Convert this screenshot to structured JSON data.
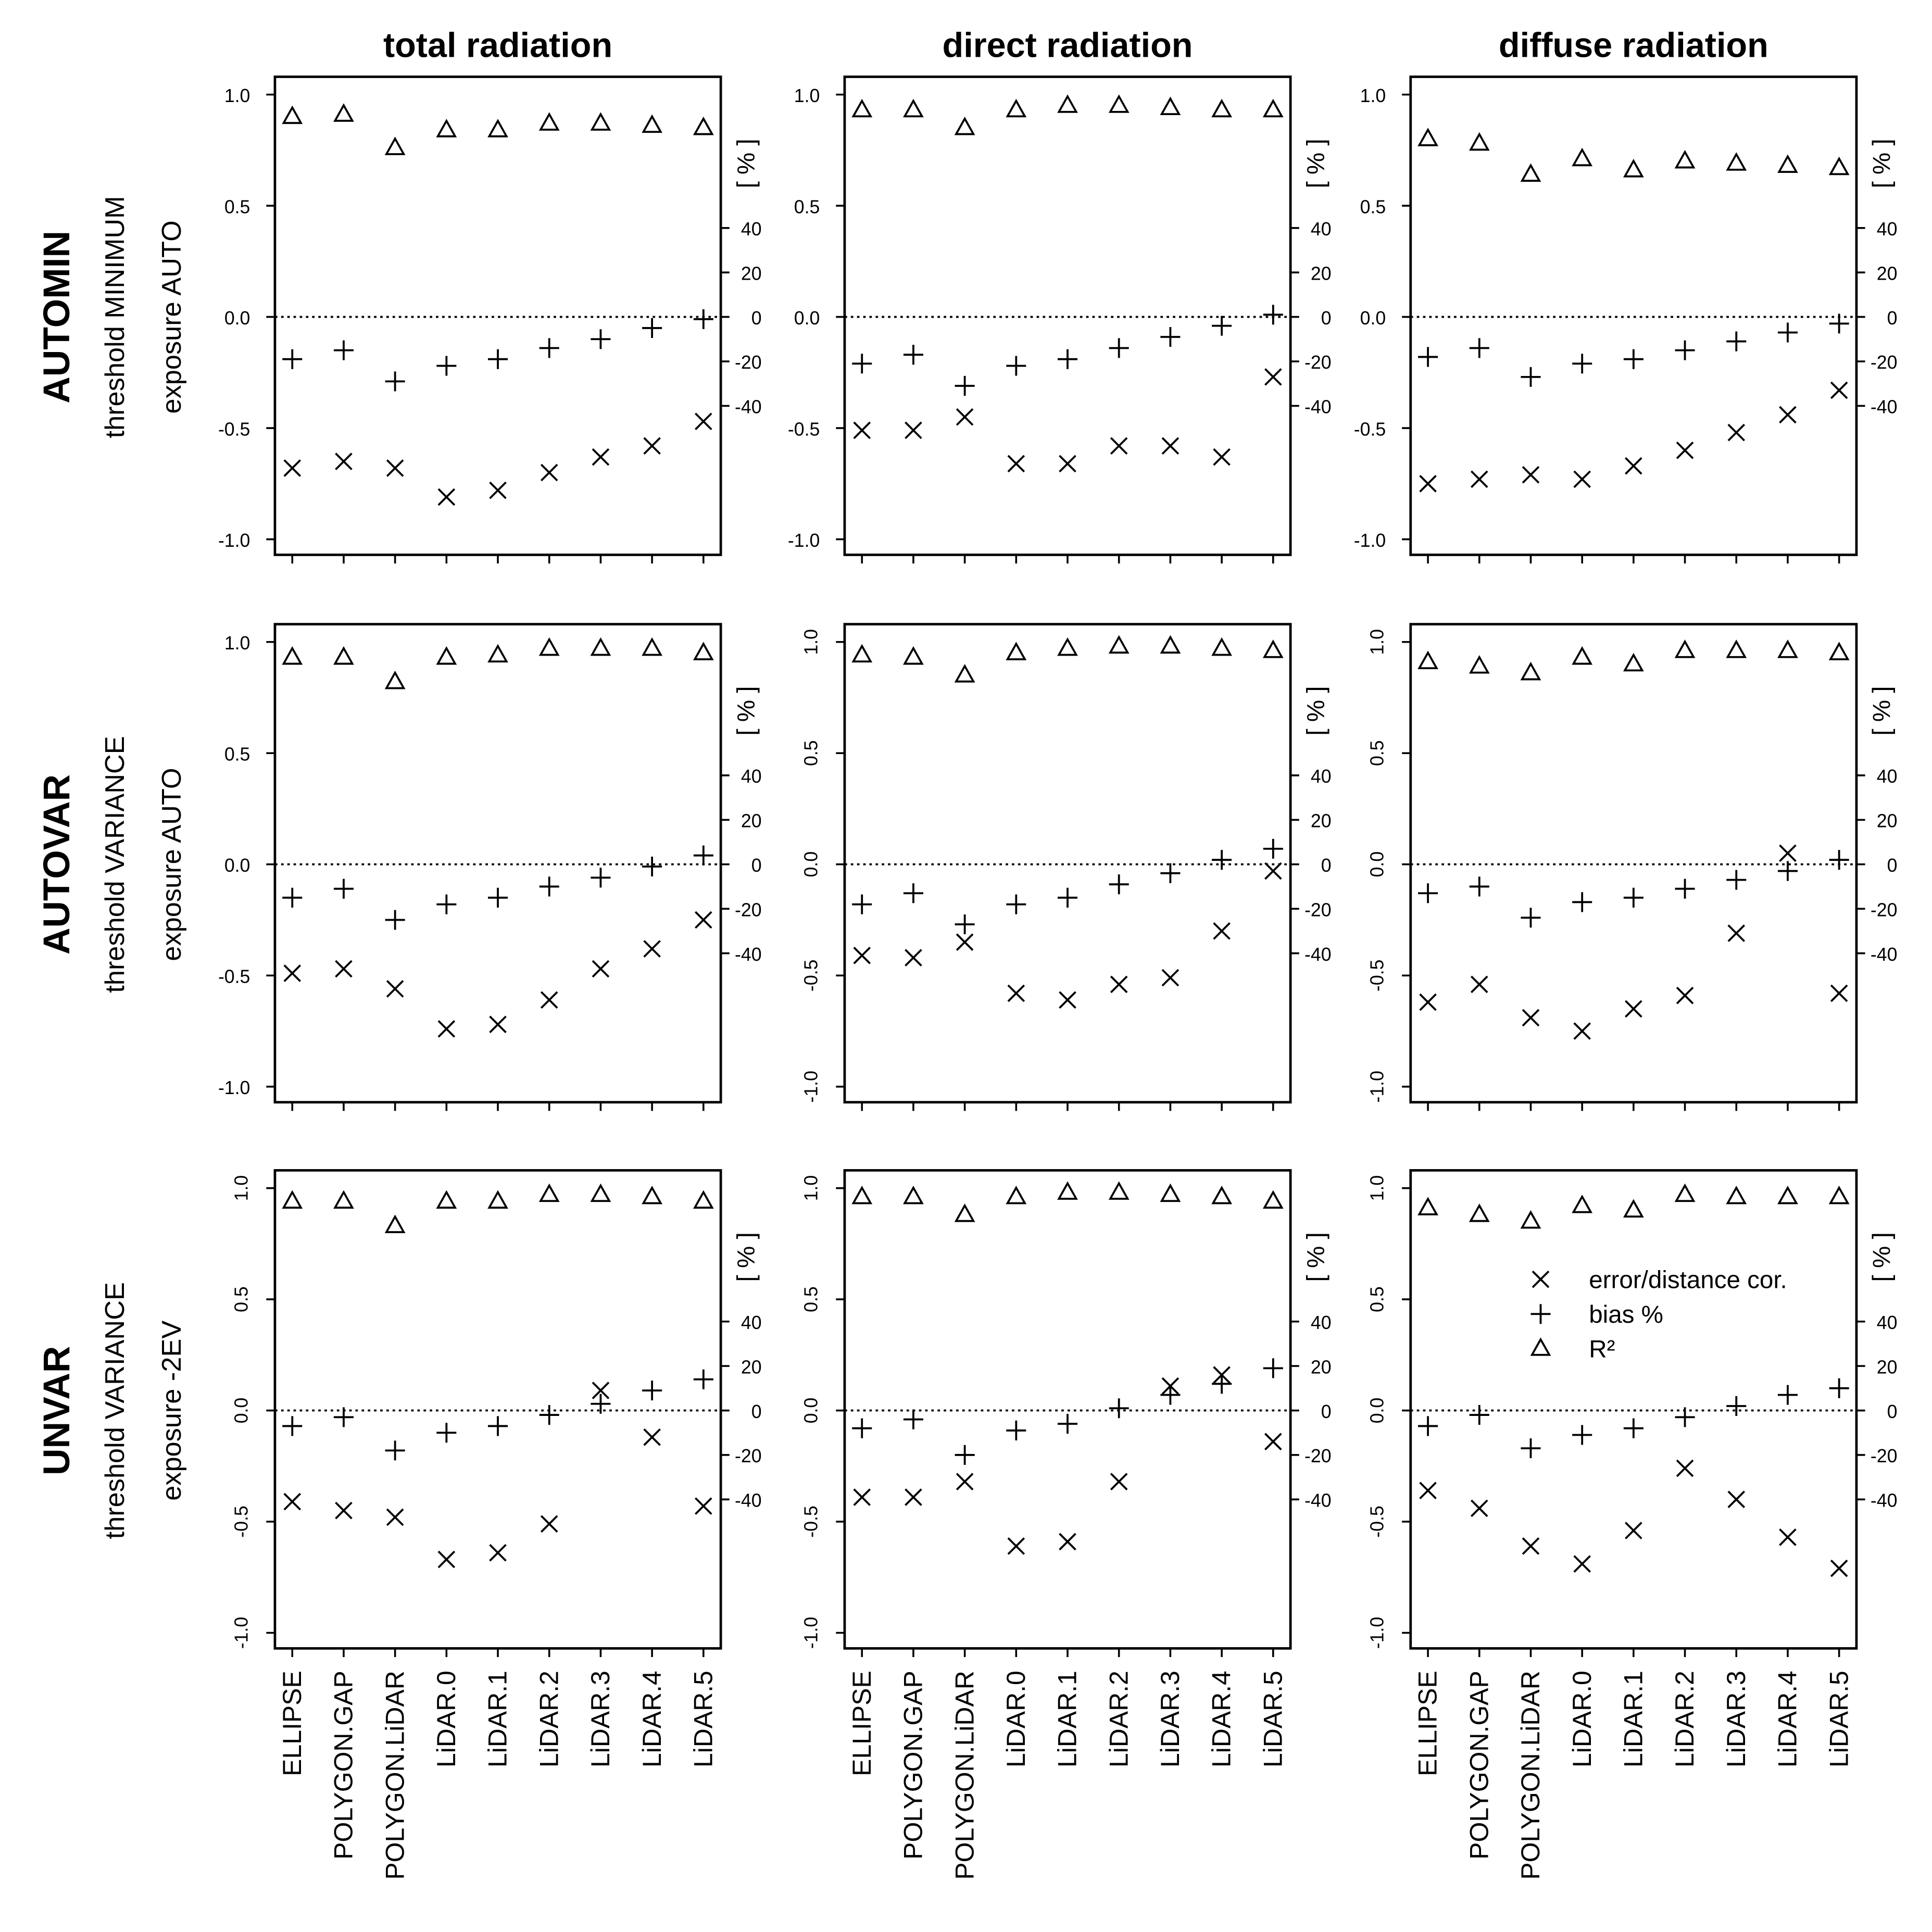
{
  "column_titles": [
    "total radiation",
    "direct radiation",
    "diffuse radiation"
  ],
  "row_labels": [
    {
      "title": "AUTOMIN",
      "threshold": "threshold MINIMUM",
      "exposure": "exposure AUTO"
    },
    {
      "title": "AUTOVAR",
      "threshold": "threshold VARIANCE",
      "exposure": "exposure AUTO"
    },
    {
      "title": "UNVAR",
      "threshold": "threshold VARIANCE",
      "exposure": "exposure -2EV"
    }
  ],
  "chart_data": [
    {
      "type": "scatter",
      "categories": [
        null,
        null,
        null,
        null,
        null,
        null,
        null,
        null,
        null
      ],
      "ylim": [
        -1.07,
        1.08
      ],
      "yticks": [
        {
          "value": -1,
          "label": "-1.0"
        },
        {
          "value": -0.5,
          "label": "-0.5"
        },
        {
          "value": 0,
          "label": "0.0"
        },
        {
          "value": 0.5,
          "label": "0.5"
        },
        {
          "value": 1,
          "label": "1.0"
        }
      ],
      "y2lim": [
        -107,
        108
      ],
      "y2ticks": [
        -40,
        -20,
        0,
        20,
        40
      ],
      "y2label": "[ % ]",
      "hline": 0,
      "series": [
        {
          "marker": "x",
          "color": "#000000",
          "values": [
            -0.68,
            -0.65,
            -0.68,
            -0.81,
            -0.78,
            -0.7,
            -0.63,
            -0.58,
            -0.47
          ]
        },
        {
          "marker": "+",
          "color": "#000000",
          "axis": "y2",
          "values": [
            -19,
            -15,
            -29,
            -22,
            -19,
            -14,
            -10,
            -5,
            -1
          ]
        },
        {
          "marker": "triangle",
          "color": "#000000",
          "values": [
            0.9,
            0.91,
            0.76,
            0.84,
            0.84,
            0.87,
            0.87,
            0.86,
            0.85
          ]
        }
      ]
    },
    {
      "type": "scatter",
      "categories": [
        null,
        null,
        null,
        null,
        null,
        null,
        null,
        null,
        null
      ],
      "ylim": [
        -1.07,
        1.08
      ],
      "yticks": [
        {
          "value": -1,
          "label": "-1.0"
        },
        {
          "value": -0.5,
          "label": "-0.5"
        },
        {
          "value": 0,
          "label": "0.0"
        },
        {
          "value": 0.5,
          "label": "0.5"
        },
        {
          "value": 1,
          "label": "1.0"
        }
      ],
      "y2lim": [
        -107,
        108
      ],
      "y2ticks": [
        -40,
        -20,
        0,
        20,
        40
      ],
      "y2label": "[ % ]",
      "hline": 0,
      "series": [
        {
          "marker": "x",
          "color": "#000000",
          "values": [
            -0.51,
            -0.51,
            -0.45,
            -0.66,
            -0.66,
            -0.58,
            -0.58,
            -0.63,
            -0.27
          ]
        },
        {
          "marker": "+",
          "color": "#000000",
          "axis": "y2",
          "values": [
            -21,
            -17,
            -31,
            -22,
            -19,
            -14,
            -9,
            -4,
            1
          ]
        },
        {
          "marker": "triangle",
          "color": "#000000",
          "values": [
            0.93,
            0.93,
            0.85,
            0.93,
            0.95,
            0.95,
            0.94,
            0.93,
            0.93
          ]
        }
      ]
    },
    {
      "type": "scatter",
      "categories": [
        null,
        null,
        null,
        null,
        null,
        null,
        null,
        null,
        null
      ],
      "ylim": [
        -1.07,
        1.08
      ],
      "yticks": [
        {
          "value": -1,
          "label": "-1.0"
        },
        {
          "value": -0.5,
          "label": "-0.5"
        },
        {
          "value": 0,
          "label": "0.0"
        },
        {
          "value": 0.5,
          "label": "0.5"
        },
        {
          "value": 1,
          "label": "1.0"
        }
      ],
      "y2lim": [
        -107,
        108
      ],
      "y2ticks": [
        -40,
        -20,
        0,
        20,
        40
      ],
      "y2label": "[ % ]",
      "hline": 0,
      "series": [
        {
          "marker": "x",
          "color": "#000000",
          "values": [
            -0.75,
            -0.73,
            -0.71,
            -0.73,
            -0.67,
            -0.6,
            -0.52,
            -0.44,
            -0.33
          ]
        },
        {
          "marker": "+",
          "color": "#000000",
          "axis": "y2",
          "values": [
            -18,
            -14,
            -27,
            -21,
            -19,
            -15,
            -11,
            -7,
            -3
          ]
        },
        {
          "marker": "triangle",
          "color": "#000000",
          "values": [
            0.8,
            0.78,
            0.64,
            0.71,
            0.66,
            0.7,
            0.69,
            0.68,
            0.67
          ]
        }
      ]
    },
    {
      "type": "scatter",
      "categories": [
        null,
        null,
        null,
        null,
        null,
        null,
        null,
        null,
        null
      ],
      "ylim": [
        -1.07,
        1.08
      ],
      "yticks": [
        {
          "value": -1,
          "label": "-1.0"
        },
        {
          "value": -0.5,
          "label": "-0.5"
        },
        {
          "value": 0,
          "label": "0.0"
        },
        {
          "value": 0.5,
          "label": "0.5"
        },
        {
          "value": 1,
          "label": "1.0"
        }
      ],
      "y2lim": [
        -107,
        108
      ],
      "y2ticks": [
        -40,
        -20,
        0,
        20,
        40
      ],
      "y2label": "[ % ]",
      "hline": 0,
      "series": [
        {
          "marker": "x",
          "color": "#000000",
          "values": [
            -0.49,
            -0.47,
            -0.56,
            -0.74,
            -0.72,
            -0.61,
            -0.47,
            -0.38,
            -0.25
          ]
        },
        {
          "marker": "+",
          "color": "#000000",
          "axis": "y2",
          "values": [
            -15,
            -11,
            -25,
            -18,
            -15,
            -10,
            -6,
            -1,
            4
          ]
        },
        {
          "marker": "triangle",
          "color": "#000000",
          "values": [
            0.93,
            0.93,
            0.82,
            0.93,
            0.94,
            0.97,
            0.97,
            0.97,
            0.95
          ]
        }
      ]
    },
    {
      "type": "scatter",
      "categories": [
        null,
        null,
        null,
        null,
        null,
        null,
        null,
        null,
        null
      ],
      "ylim": [
        -1.07,
        1.08
      ],
      "yticks": [
        {
          "value": -1,
          "label": "-1.0"
        },
        {
          "value": -0.5,
          "label": "-0.5"
        },
        {
          "value": 0,
          "label": "0.0"
        },
        {
          "value": 0.5,
          "label": "0.5"
        },
        {
          "value": 1,
          "label": "1.0"
        }
      ],
      "y2lim": [
        -107,
        108
      ],
      "y2ticks": [
        -40,
        -20,
        0,
        20,
        40
      ],
      "y2label": "[ % ]",
      "hline": 0,
      "series": [
        {
          "marker": "x",
          "color": "#000000",
          "values": [
            -0.41,
            -0.42,
            -0.35,
            -0.58,
            -0.61,
            -0.54,
            -0.51,
            -0.3,
            -0.03
          ]
        },
        {
          "marker": "+",
          "color": "#000000",
          "axis": "y2",
          "values": [
            -18,
            -13,
            -27,
            -18,
            -15,
            -9,
            -4,
            2,
            7
          ]
        },
        {
          "marker": "triangle",
          "color": "#000000",
          "values": [
            0.94,
            0.93,
            0.85,
            0.95,
            0.97,
            0.98,
            0.98,
            0.97,
            0.96
          ]
        }
      ]
    },
    {
      "type": "scatter",
      "categories": [
        null,
        null,
        null,
        null,
        null,
        null,
        null,
        null,
        null
      ],
      "ylim": [
        -1.07,
        1.08
      ],
      "yticks": [
        {
          "value": -1,
          "label": "-1.0"
        },
        {
          "value": -0.5,
          "label": "-0.5"
        },
        {
          "value": 0,
          "label": "0.0"
        },
        {
          "value": 0.5,
          "label": "0.5"
        },
        {
          "value": 1,
          "label": "1.0"
        }
      ],
      "y2lim": [
        -107,
        108
      ],
      "y2ticks": [
        -40,
        -20,
        0,
        20,
        40
      ],
      "y2label": "[ % ]",
      "hline": 0,
      "series": [
        {
          "marker": "x",
          "color": "#000000",
          "values": [
            -0.62,
            -0.54,
            -0.69,
            -0.75,
            -0.65,
            -0.59,
            -0.31,
            0.05,
            -0.58
          ]
        },
        {
          "marker": "+",
          "color": "#000000",
          "axis": "y2",
          "values": [
            -13,
            -10,
            -24,
            -17,
            -15,
            -11,
            -7,
            -3,
            2
          ]
        },
        {
          "marker": "triangle",
          "color": "#000000",
          "values": [
            0.91,
            0.89,
            0.86,
            0.93,
            0.9,
            0.96,
            0.96,
            0.96,
            0.95
          ]
        }
      ]
    },
    {
      "type": "scatter",
      "categories": [
        "ELLIPSE",
        "POLYGON.GAP",
        "POLYGON.LiDAR",
        "LiDAR.0",
        "LiDAR.1",
        "LiDAR.2",
        "LiDAR.3",
        "LiDAR.4",
        "LiDAR.5"
      ],
      "ylim": [
        -1.07,
        1.08
      ],
      "yticks": [
        {
          "value": -1,
          "label": "-1.0"
        },
        {
          "value": -0.5,
          "label": "-0.5"
        },
        {
          "value": 0,
          "label": "0.0"
        },
        {
          "value": 0.5,
          "label": "0.5"
        },
        {
          "value": 1,
          "label": "1.0"
        }
      ],
      "y2lim": [
        -107,
        108
      ],
      "y2ticks": [
        -40,
        -20,
        0,
        20,
        40
      ],
      "y2label": "[ % ]",
      "hline": 0,
      "series": [
        {
          "marker": "x",
          "color": "#000000",
          "values": [
            -0.41,
            -0.45,
            -0.48,
            -0.67,
            -0.64,
            -0.51,
            0.09,
            -0.12,
            -0.43
          ]
        },
        {
          "marker": "+",
          "color": "#000000",
          "axis": "y2",
          "values": [
            -7,
            -3,
            -18,
            -10,
            -7,
            -2,
            3,
            9,
            14
          ]
        },
        {
          "marker": "triangle",
          "color": "#000000",
          "values": [
            0.94,
            0.94,
            0.83,
            0.94,
            0.94,
            0.97,
            0.97,
            0.96,
            0.94
          ]
        }
      ]
    },
    {
      "type": "scatter",
      "categories": [
        "ELLIPSE",
        "POLYGON.GAP",
        "POLYGON.LiDAR",
        "LiDAR.0",
        "LiDAR.1",
        "LiDAR.2",
        "LiDAR.3",
        "LiDAR.4",
        "LiDAR.5"
      ],
      "ylim": [
        -1.07,
        1.08
      ],
      "yticks": [
        {
          "value": -1,
          "label": "-1.0"
        },
        {
          "value": -0.5,
          "label": "-0.5"
        },
        {
          "value": 0,
          "label": "0.0"
        },
        {
          "value": 0.5,
          "label": "0.5"
        },
        {
          "value": 1,
          "label": "1.0"
        }
      ],
      "y2lim": [
        -107,
        108
      ],
      "y2ticks": [
        -40,
        -20,
        0,
        20,
        40
      ],
      "y2label": "[ % ]",
      "hline": 0,
      "series": [
        {
          "marker": "x",
          "color": "#000000",
          "values": [
            -0.39,
            -0.39,
            -0.32,
            -0.61,
            -0.59,
            -0.32,
            0.11,
            0.16,
            -0.14
          ]
        },
        {
          "marker": "+",
          "color": "#000000",
          "axis": "y2",
          "values": [
            -8,
            -4,
            -20,
            -9,
            -6,
            1,
            7,
            12,
            19
          ]
        },
        {
          "marker": "triangle",
          "color": "#000000",
          "values": [
            0.96,
            0.96,
            0.88,
            0.96,
            0.98,
            0.98,
            0.97,
            0.96,
            0.94
          ]
        }
      ]
    },
    {
      "type": "scatter",
      "categories": [
        "ELLIPSE",
        "POLYGON.GAP",
        "POLYGON.LiDAR",
        "LiDAR.0",
        "LiDAR.1",
        "LiDAR.2",
        "LiDAR.3",
        "LiDAR.4",
        "LiDAR.5"
      ],
      "ylim": [
        -1.07,
        1.08
      ],
      "yticks": [
        {
          "value": -1,
          "label": "-1.0"
        },
        {
          "value": -0.5,
          "label": "-0.5"
        },
        {
          "value": 0,
          "label": "0.0"
        },
        {
          "value": 0.5,
          "label": "0.5"
        },
        {
          "value": 1,
          "label": "1.0"
        }
      ],
      "y2lim": [
        -107,
        108
      ],
      "y2ticks": [
        -40,
        -20,
        0,
        20,
        40
      ],
      "y2label": "[ % ]",
      "hline": 0,
      "legend": "right",
      "series": [
        {
          "name": "error/distance cor.",
          "marker": "x",
          "color": "#000000",
          "values": [
            -0.36,
            -0.44,
            -0.61,
            -0.69,
            -0.54,
            -0.26,
            -0.4,
            -0.57,
            -0.71
          ]
        },
        {
          "name": "bias %",
          "marker": "+",
          "color": "#000000",
          "axis": "y2",
          "values": [
            -7,
            -2,
            -17,
            -11,
            -8,
            -3,
            2,
            7,
            10
          ]
        },
        {
          "name": "R²",
          "marker": "triangle",
          "color": "#000000",
          "values": [
            0.91,
            0.88,
            0.85,
            0.92,
            0.9,
            0.97,
            0.96,
            0.96,
            0.96
          ]
        }
      ]
    }
  ]
}
